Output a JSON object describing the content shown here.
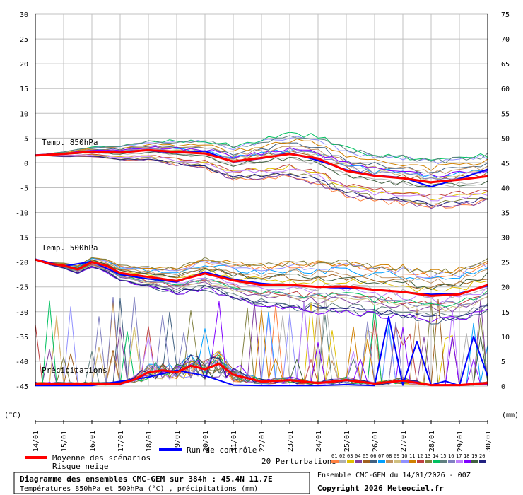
{
  "chart_data": {
    "type": "line",
    "left_axis": {
      "unit": "(°C)",
      "min": -45,
      "max": 30,
      "ticks": [
        30,
        25,
        20,
        15,
        10,
        5,
        0,
        -5,
        -10,
        -15,
        -20,
        -25,
        -30,
        -35,
        -40,
        -45
      ]
    },
    "right_axis": {
      "unit": "(mm)",
      "min": 0,
      "max": 75,
      "ticks": [
        75,
        70,
        65,
        60,
        55,
        50,
        45,
        40,
        35,
        30,
        25,
        20,
        15,
        10,
        5,
        0
      ]
    },
    "x_ticks": [
      "14/01",
      "15/01",
      "16/01",
      "17/01",
      "18/01",
      "19/01",
      "20/01",
      "21/01",
      "22/01",
      "23/01",
      "24/01",
      "25/01",
      "26/01",
      "27/01",
      "28/01",
      "29/01",
      "30/01"
    ],
    "x_hours_max": 384,
    "panel_labels": {
      "t850": "Temp. 850hPa",
      "t500": "Temp. 500hPa",
      "precip": "Précipitations"
    },
    "series": [
      {
        "name": "Moyenne des scénarios",
        "color": "#ff0000",
        "t850_x": [
          0,
          24,
          48,
          72,
          96,
          120,
          144,
          168,
          192,
          216,
          240,
          264,
          288,
          312,
          336,
          360,
          384
        ],
        "t850_y": [
          1.5,
          1.8,
          2.3,
          2.1,
          2.6,
          2.2,
          1.9,
          0.3,
          1.0,
          1.8,
          0.9,
          -1.6,
          -2.6,
          -3.1,
          -3.9,
          -3.4,
          -2.7
        ],
        "t500_x": [
          0,
          12,
          24,
          36,
          48,
          60,
          72,
          96,
          120,
          144,
          168,
          192,
          216,
          240,
          264,
          288,
          312,
          336,
          360,
          384
        ],
        "t500_y": [
          -19.5,
          -20.3,
          -20.7,
          -21.5,
          -20.0,
          -20.7,
          -22.2,
          -23.0,
          -23.8,
          -22.3,
          -23.7,
          -24.6,
          -24.6,
          -25.0,
          -24.9,
          -25.6,
          -26.0,
          -26.8,
          -26.5,
          -24.6
        ],
        "precip_x": [
          0,
          48,
          72,
          84,
          96,
          108,
          120,
          132,
          144,
          156,
          168,
          192,
          216,
          240,
          264,
          288,
          312,
          336,
          360,
          384
        ],
        "precip_y": [
          0.5,
          0.5,
          0.5,
          1.3,
          2.8,
          3.2,
          2.8,
          4.1,
          3.4,
          4.5,
          2.3,
          0.9,
          1.2,
          0.6,
          1.2,
          0.5,
          1.1,
          0.2,
          0.2,
          0.6
        ]
      },
      {
        "name": "Run de contrôle",
        "color": "#0000ff",
        "t850_x": [
          0,
          24,
          48,
          72,
          96,
          120,
          144,
          168,
          192,
          216,
          240,
          264,
          288,
          312,
          336,
          360,
          384
        ],
        "t850_y": [
          1.6,
          1.9,
          2.2,
          2.3,
          2.5,
          2.0,
          2.4,
          0.2,
          0.9,
          2.0,
          0.5,
          -1.4,
          -2.5,
          -3.0,
          -4.8,
          -3.2,
          -1.3
        ],
        "t500_x": [
          0,
          24,
          48,
          72,
          96,
          120,
          144,
          168,
          192,
          216,
          240,
          264,
          288,
          312,
          336,
          360,
          384
        ],
        "t500_y": [
          -19.4,
          -20.8,
          -19.9,
          -22.5,
          -23.4,
          -24.0,
          -22.0,
          -23.5,
          -24.3,
          -24.7,
          -25.0,
          -25.2,
          -25.5,
          -26.1,
          -26.5,
          -26.3,
          -24.8
        ],
        "precip_x": [
          0,
          48,
          96,
          120,
          144,
          168,
          192,
          216,
          240,
          264,
          288,
          300,
          312,
          324,
          336,
          348,
          360,
          372,
          384
        ],
        "precip_y": [
          0.1,
          0.1,
          1.8,
          3.2,
          2.1,
          0.2,
          0.1,
          0.1,
          0.1,
          0.3,
          0.1,
          14.0,
          0.2,
          9.0,
          0.2,
          1.0,
          0.1,
          10.0,
          2.0
        ]
      }
    ],
    "legend": {
      "mean": "Moyenne des scénarios",
      "snow": "Risque neige",
      "control": "Run de contrôle",
      "perturbations": "20 Perturbations",
      "perturbation_numbers": [
        "01",
        "02",
        "03",
        "04",
        "05",
        "06",
        "07",
        "08",
        "09",
        "10",
        "11",
        "12",
        "13",
        "14",
        "15",
        "16",
        "17",
        "18",
        "19",
        "20"
      ],
      "perturbation_colors": [
        "#ff8040",
        "#b0b0b0",
        "#e0c000",
        "#8040a0",
        "#a06020",
        "#406080",
        "#00a0ff",
        "#c09060",
        "#d0c080",
        "#9090ff",
        "#d08000",
        "#c04040",
        "#808040",
        "#00c060",
        "#608080",
        "#8080c0",
        "#c080ff",
        "#8000ff",
        "#406040",
        "#202080"
      ]
    },
    "info": {
      "title": "Diagramme des ensembles CMC-GEM sur 384h : 45.4N 11.7E",
      "subtitle": "Températures 850hPa et 500hPa (°C) , précipitations (mm)",
      "run": "Ensemble CMC-GEM du 14/01/2026 - 00Z",
      "copyright": "Copyright 2026 Meteociel.fr"
    }
  }
}
